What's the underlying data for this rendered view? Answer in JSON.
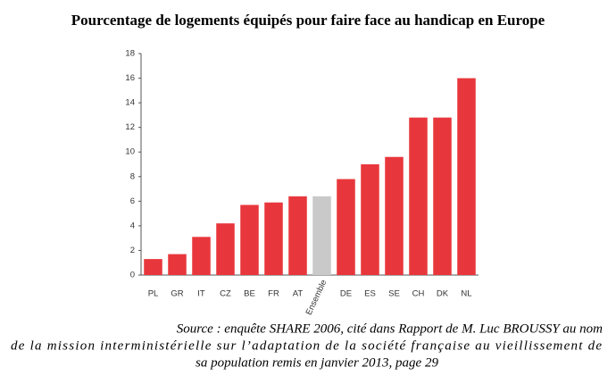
{
  "chart_data": {
    "type": "bar",
    "title": "Pourcentage de logements équipés pour faire face au handicap en Europe",
    "categories": [
      "PL",
      "GR",
      "IT",
      "CZ",
      "BE",
      "FR",
      "AT",
      "Ensemble",
      "DE",
      "ES",
      "SE",
      "CH",
      "DK",
      "NL"
    ],
    "values": [
      1.3,
      1.7,
      3.1,
      4.2,
      5.7,
      5.9,
      6.4,
      6.4,
      7.8,
      9.0,
      9.6,
      12.8,
      12.8,
      16.0
    ],
    "colors": [
      "#e8373c",
      "#e8373c",
      "#e8373c",
      "#e8373c",
      "#e8373c",
      "#e8373c",
      "#e8373c",
      "#c9c9c9",
      "#e8373c",
      "#e8373c",
      "#e8373c",
      "#e8373c",
      "#e8373c",
      "#e8373c"
    ],
    "ylim": [
      0,
      18
    ],
    "yticks": [
      0,
      2,
      4,
      6,
      8,
      10,
      12,
      14,
      16,
      18
    ],
    "grid": false,
    "source": [
      "Source : enquête SHARE 2006, cité dans Rapport de M. Luc BROUSSY au nom",
      "de la mission interministérielle sur l’adaptation de la société française au vieillissement de",
      "sa population remis en janvier 2013, page 29"
    ]
  }
}
